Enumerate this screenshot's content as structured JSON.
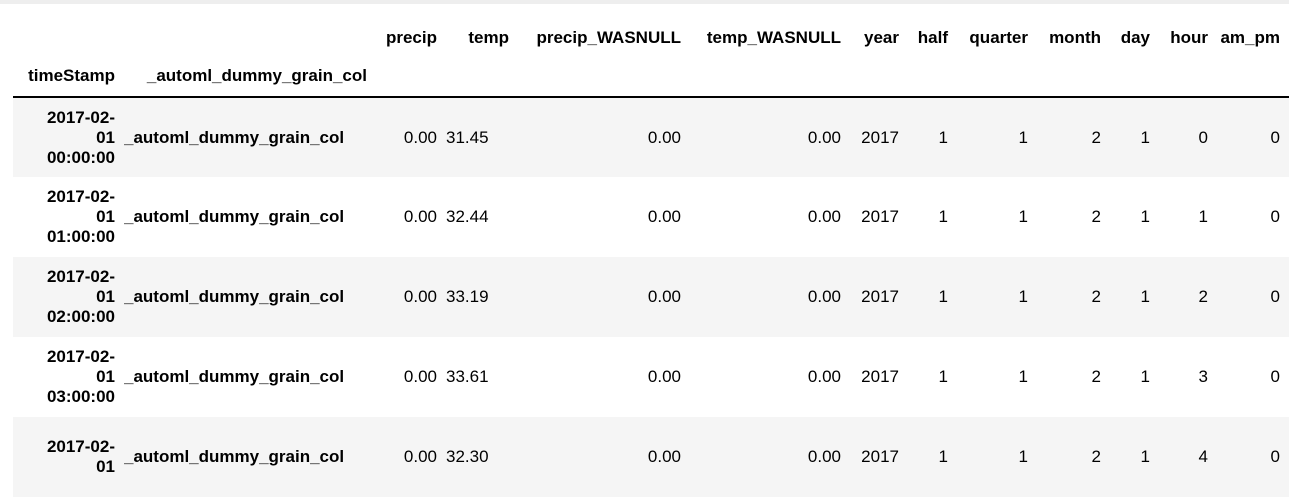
{
  "table": {
    "index_names": [
      "timeStamp",
      "_automl_dummy_grain_col"
    ],
    "columns": [
      "precip",
      "temp",
      "precip_WASNULL",
      "temp_WASNULL",
      "year",
      "half",
      "quarter",
      "month",
      "day",
      "hour",
      "am_pm"
    ],
    "rows": [
      {
        "ts_date": "2017-02-",
        "ts_day": "01",
        "ts_time": "00:00:00",
        "grain": "_automl_dummy_grain_col",
        "cells": [
          "0.00",
          "31.45",
          "0.00",
          "0.00",
          "2017",
          "1",
          "1",
          "2",
          "1",
          "0",
          "0"
        ]
      },
      {
        "ts_date": "2017-02-",
        "ts_day": "01",
        "ts_time": "01:00:00",
        "grain": "_automl_dummy_grain_col",
        "cells": [
          "0.00",
          "32.44",
          "0.00",
          "0.00",
          "2017",
          "1",
          "1",
          "2",
          "1",
          "1",
          "0"
        ]
      },
      {
        "ts_date": "2017-02-",
        "ts_day": "01",
        "ts_time": "02:00:00",
        "grain": "_automl_dummy_grain_col",
        "cells": [
          "0.00",
          "33.19",
          "0.00",
          "0.00",
          "2017",
          "1",
          "1",
          "2",
          "1",
          "2",
          "0"
        ]
      },
      {
        "ts_date": "2017-02-",
        "ts_day": "01",
        "ts_time": "03:00:00",
        "grain": "_automl_dummy_grain_col",
        "cells": [
          "0.00",
          "33.61",
          "0.00",
          "0.00",
          "2017",
          "1",
          "1",
          "2",
          "1",
          "3",
          "0"
        ]
      },
      {
        "ts_date": "2017-02-",
        "ts_day": "01",
        "ts_time": "",
        "grain": "_automl_dummy_grain_col",
        "cells": [
          "0.00",
          "32.30",
          "0.00",
          "0.00",
          "2017",
          "1",
          "1",
          "2",
          "1",
          "4",
          "0"
        ]
      }
    ]
  },
  "colors": {
    "row_alt_background": "#f5f5f5",
    "header_rule": "#000000",
    "text": "#000000"
  }
}
